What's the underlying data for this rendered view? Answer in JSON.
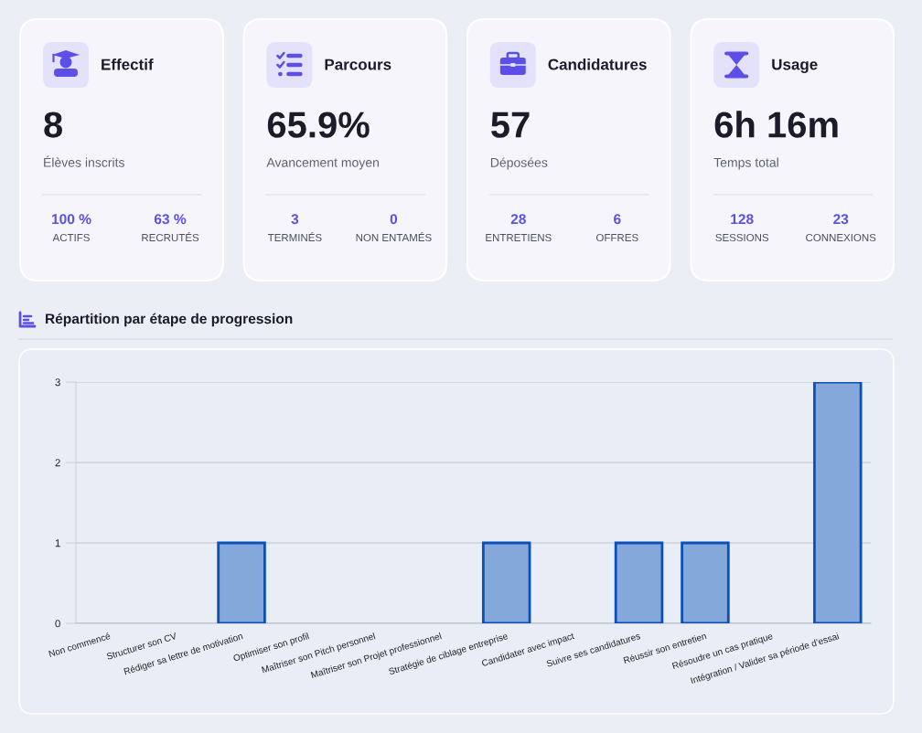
{
  "chart_data": [
    {
      "type": "other",
      "title": "Effectif",
      "annotations": [
        "8",
        "Élèves inscrits",
        "100 %",
        "ACTIFS",
        "63 %",
        "RECRUTÉS"
      ]
    },
    {
      "type": "other",
      "title": "Parcours",
      "annotations": [
        "65.9%",
        "Avancement moyen",
        "3",
        "TERMINÉS",
        "0",
        "NON ENTAMÉS"
      ]
    },
    {
      "type": "other",
      "title": "Candidatures",
      "annotations": [
        "57",
        "Déposées",
        "28",
        "ENTRETIENS",
        "6",
        "OFFRES"
      ]
    },
    {
      "type": "other",
      "title": "Usage",
      "annotations": [
        "6h 16m",
        "Temps total",
        "128",
        "SESSIONS",
        "23",
        "CONNEXIONS"
      ]
    },
    {
      "type": "bar",
      "title": "Répartition par étape de progression",
      "categories": [
        "Non commencé",
        "Structurer son CV",
        "Rédiger sa lettre de motivation",
        "Optimiser son profil",
        "Maîtriser son Pitch personnel",
        "Maîtriser son Projet professionnel",
        "Stratégie de ciblage entreprise",
        "Candidater avec impact",
        "Suivre ses candidatures",
        "Réussir son entretien",
        "Résoudre un cas pratique",
        "Intégration / Valider sa période d’essai"
      ],
      "values": [
        0,
        0,
        1,
        0,
        0,
        0,
        1,
        0,
        1,
        1,
        0,
        3
      ],
      "color": "#84a8d9",
      "ylim": [
        0,
        3
      ],
      "yticks": [
        0,
        1,
        2,
        3
      ],
      "grid": "y"
    }
  ]
}
